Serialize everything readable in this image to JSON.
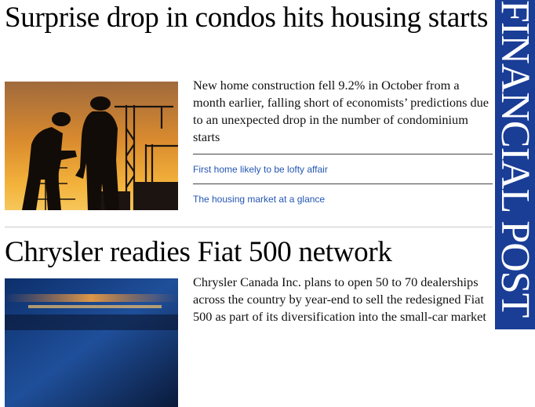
{
  "brand": {
    "name": "FINANCIAL POST"
  },
  "stories": [
    {
      "headline": "Surprise drop in condos hits housing starts",
      "summary": "New home construction fell 9.2% in October from a month earlier, falling short of economists’ predictions due to an unexpected drop in the number of condominium starts",
      "related": [
        "First home likely to be lofty affair",
        "The housing market at a glance"
      ]
    },
    {
      "headline": "Chrysler readies Fiat 500 network",
      "summary": "Chrysler Canada Inc. plans to open 50 to 70 dealerships across the country by year-end to sell the redesigned Fiat 500 as part of its diversification into the small-car market"
    }
  ],
  "colors": {
    "brand_blue": "#1a3d96",
    "link_blue": "#2456b3"
  }
}
